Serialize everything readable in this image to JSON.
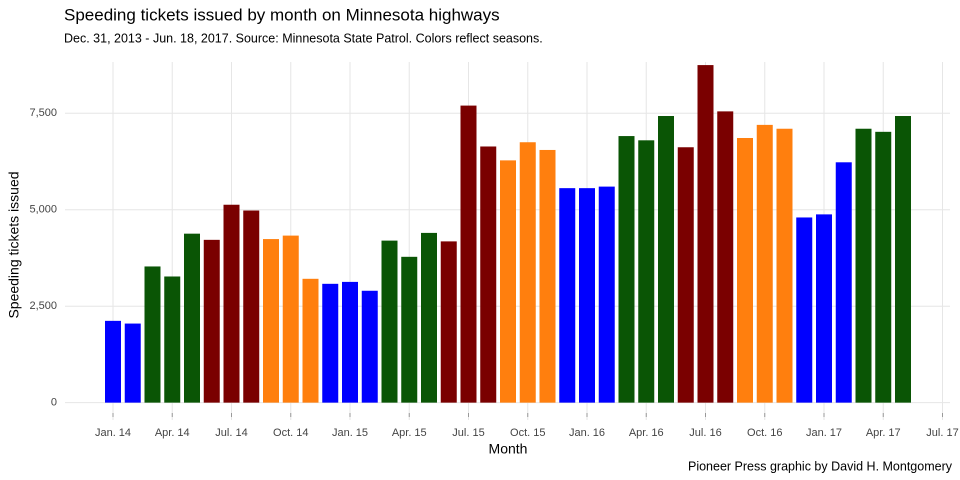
{
  "chart_data": {
    "type": "bar",
    "title": "Speeding tickets issued by month on Minnesota highways",
    "subtitle": "Dec. 31, 2013 - Jun. 18, 2017. Source: Minnesota State Patrol. Colors reflect seasons.",
    "x_label": "Month",
    "y_label": "Speeding tickets issued",
    "caption": "Pioneer Press graphic by David H. Montgomery",
    "categories": [
      "Jan. 14",
      null,
      null,
      "Apr. 14",
      null,
      null,
      "Jul. 14",
      null,
      null,
      "Oct. 14",
      null,
      null,
      "Jan. 15",
      null,
      null,
      "Apr. 15",
      null,
      null,
      "Jul. 15",
      null,
      null,
      "Oct. 15",
      null,
      null,
      "Jan. 16",
      null,
      null,
      "Apr. 16",
      null,
      null,
      "Jul. 16",
      null,
      null,
      "Oct. 16",
      null,
      null,
      "Jan. 17",
      null,
      null,
      "Apr. 17",
      null,
      null,
      "Jul. 17"
    ],
    "values": [
      2120,
      2050,
      3530,
      3270,
      4380,
      4220,
      5130,
      4980,
      4240,
      4330,
      3210,
      3080,
      3130,
      2900,
      4200,
      3780,
      4400,
      4180,
      7700,
      6640,
      6280,
      6750,
      6550,
      5560,
      5560,
      5600,
      6910,
      6800,
      7430,
      6620,
      8750,
      7550,
      6860,
      7200,
      7100,
      4800,
      4880,
      6230,
      7100,
      7020,
      7430,
      null,
      null
    ],
    "colors": [
      "#0000ff",
      "#0000ff",
      "#0a5505",
      "#0a5505",
      "#0a5505",
      "#7a0000",
      "#7a0000",
      "#7a0000",
      "#ff7f0e",
      "#ff7f0e",
      "#ff7f0e",
      "#0000ff",
      "#0000ff",
      "#0000ff",
      "#0a5505",
      "#0a5505",
      "#0a5505",
      "#7a0000",
      "#7a0000",
      "#7a0000",
      "#ff7f0e",
      "#ff7f0e",
      "#ff7f0e",
      "#0000ff",
      "#0000ff",
      "#0000ff",
      "#0a5505",
      "#0a5505",
      "#0a5505",
      "#7a0000",
      "#7a0000",
      "#7a0000",
      "#ff7f0e",
      "#ff7f0e",
      "#ff7f0e",
      "#0000ff",
      "#0000ff",
      "#0000ff",
      "#0a5505",
      "#0a5505",
      "#0a5505",
      null,
      null
    ],
    "ylim": [
      -450,
      8830
    ],
    "yticks": [
      0,
      {
        "value": 2500,
        "label": "2,500"
      },
      {
        "value": 5000,
        "label": "5,000"
      },
      {
        "value": 7500,
        "label": "7,500"
      }
    ],
    "grid": true
  }
}
